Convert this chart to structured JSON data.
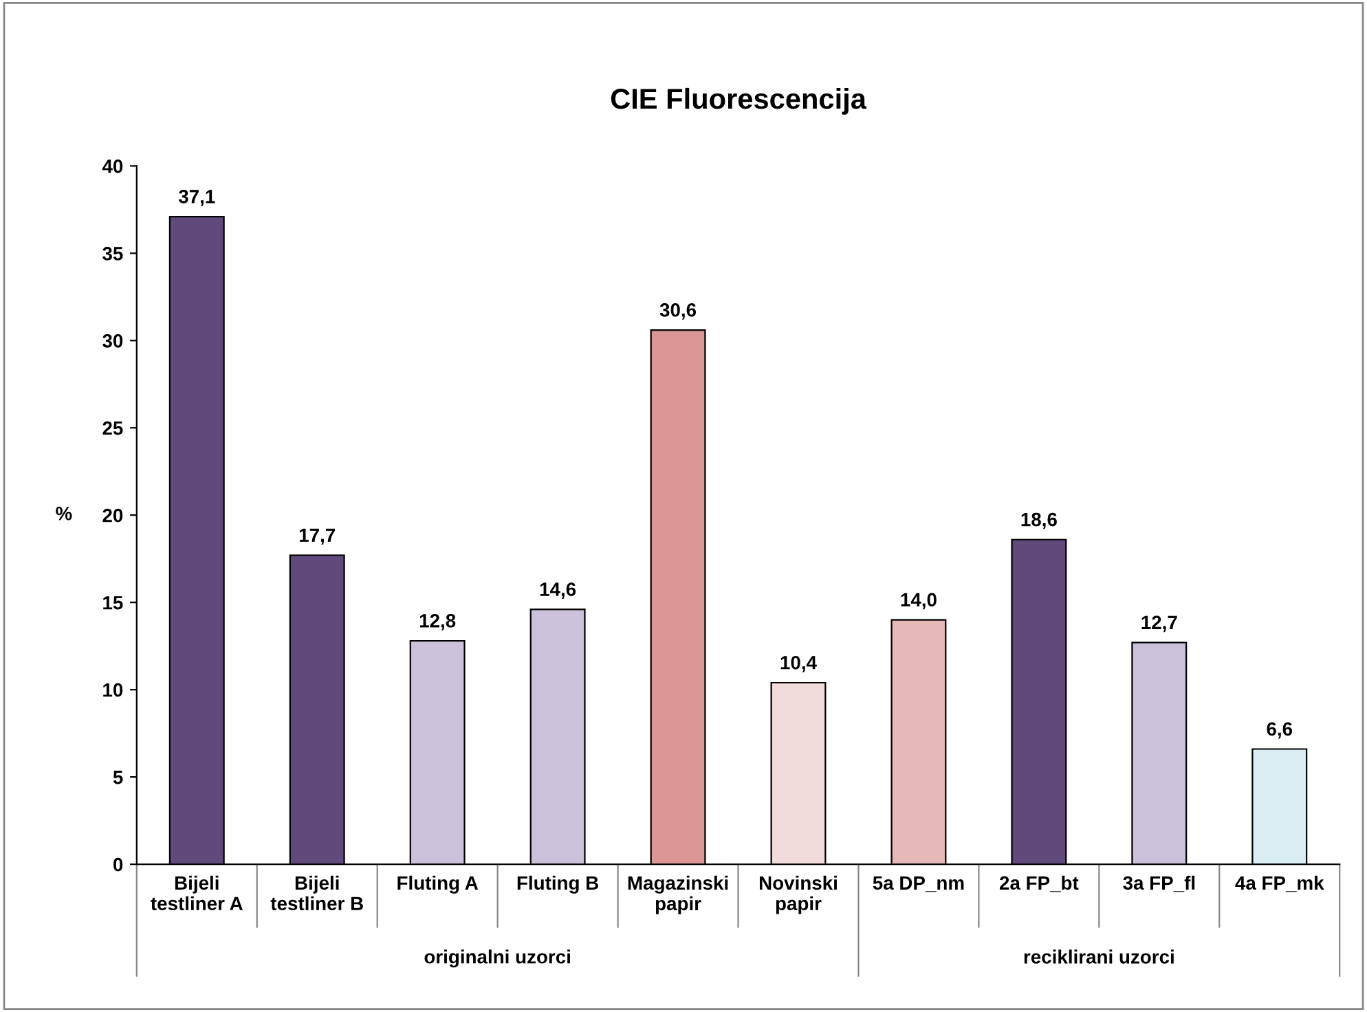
{
  "chart_data": {
    "type": "bar",
    "title": "CIE Fluorescencija",
    "ylabel": "%",
    "categories": [
      "Bijeli\ntestliner A",
      "Bijeli\ntestliner B",
      "Fluting A",
      "Fluting B",
      "Magazinski\npapir",
      "Novinski\npapir",
      "5a DP_nm",
      "2a FP_bt",
      "3a FP_fl",
      "4a FP_mk"
    ],
    "values": [
      37.1,
      17.7,
      12.8,
      14.6,
      30.6,
      10.4,
      14.0,
      18.6,
      12.7,
      6.6
    ],
    "colors": [
      "#604a7b",
      "#604a7b",
      "#ccc1da",
      "#ccc1da",
      "#d99694",
      "#f2dcdb",
      "#e6b9b8",
      "#604a7b",
      "#ccc1da",
      "#dbeef4"
    ],
    "value_labels": [
      "37,1",
      "17,7",
      "12,8",
      "14,6",
      "30,6",
      "10,4",
      "14,0",
      "18,6",
      "12,7",
      "6,6"
    ],
    "annotations": [
      "originalni uzorci",
      "reciklirani uzorci"
    ],
    "ylim": [
      0,
      40
    ],
    "yticks": [
      0,
      5,
      10,
      15,
      20,
      25,
      30,
      35,
      40
    ],
    "grid": false,
    "legend": false
  }
}
